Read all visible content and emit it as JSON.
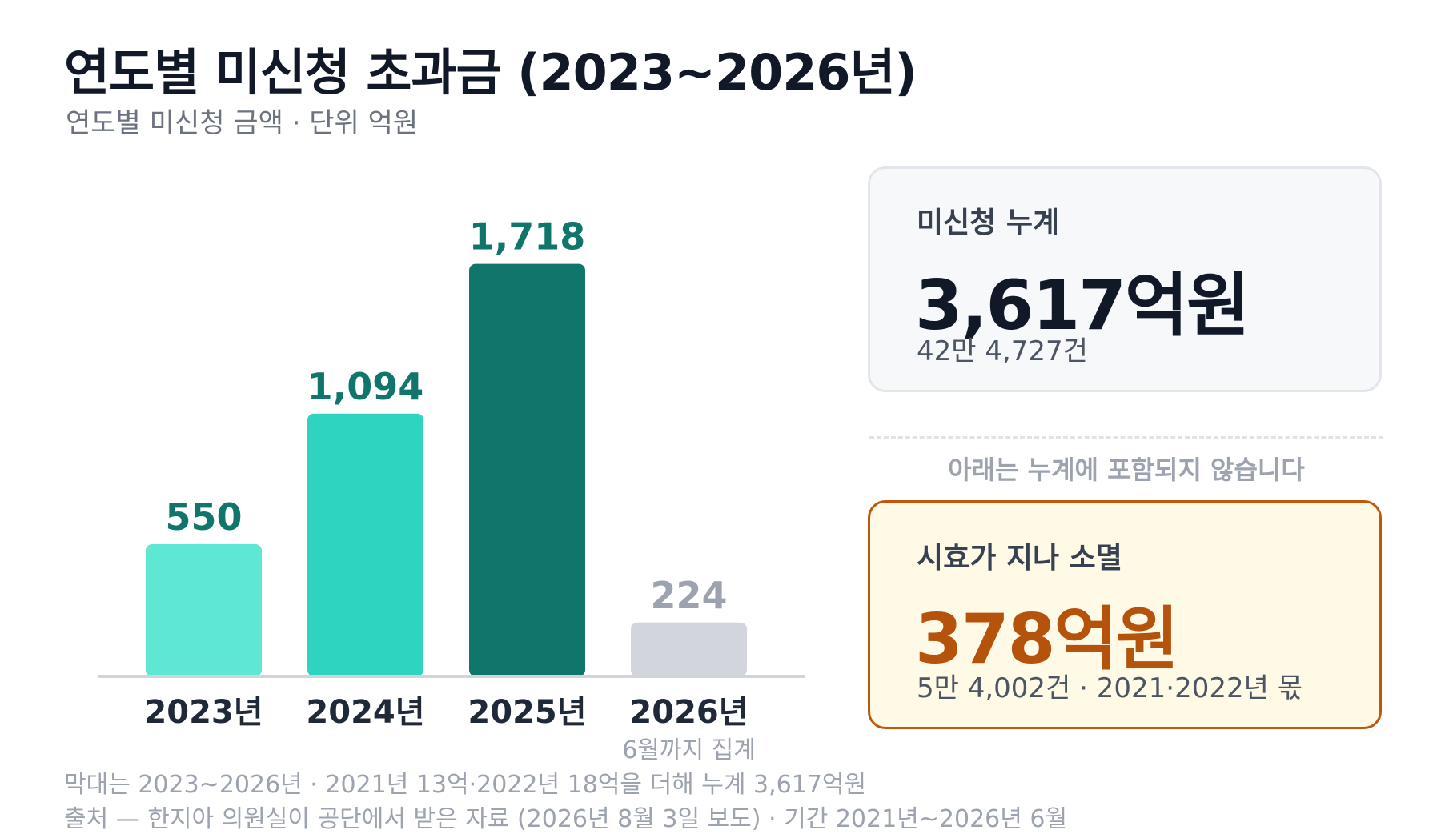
{
  "header": {
    "title": "연도별 미신청 초과금 (2023~2026년)",
    "subtitle": "연도별 미신청 금액 · 단위 억원"
  },
  "chart_data": {
    "type": "bar",
    "categories": [
      "2023년",
      "2024년",
      "2025년",
      "2026년"
    ],
    "values": [
      550,
      1094,
      1718,
      224
    ],
    "value_labels": [
      "550",
      "1,094",
      "1,718",
      "224"
    ],
    "category_notes": [
      "",
      "",
      "",
      "6월까지 집계"
    ],
    "unit": "억원",
    "colors": [
      "#5ee8d4",
      "#2ed4c0",
      "#10766c",
      "#d2d6dc"
    ],
    "label_colors": [
      "#10766c",
      "#10766c",
      "#10766c",
      "#9ca3af"
    ],
    "grid": false
  },
  "summary": {
    "total_label": "미신청 누계",
    "total_value": "3,617억원",
    "total_count": "42만 4,727건",
    "divider_text": "아래는 누계에 포함되지 않습니다",
    "expired_label": "시효가 지나 소멸",
    "expired_value": "378억원",
    "expired_note": "5만 4,002건 · 2021·2022년 몫"
  },
  "footnotes": {
    "line1": "막대는 2023~2026년 · 2021년 13억·2022년 18억을 더해 누계 3,617억원",
    "line2": "출처 — 한지아 의원실이 공단에서 받은 자료 (2026년 8월 3일 보도) · 기간 2021년~2026년 6월"
  },
  "colors": {
    "accent": "#10766c",
    "expired": "#b5520c",
    "expired_border": "#c2570c",
    "expired_bg": "#fefae6"
  }
}
